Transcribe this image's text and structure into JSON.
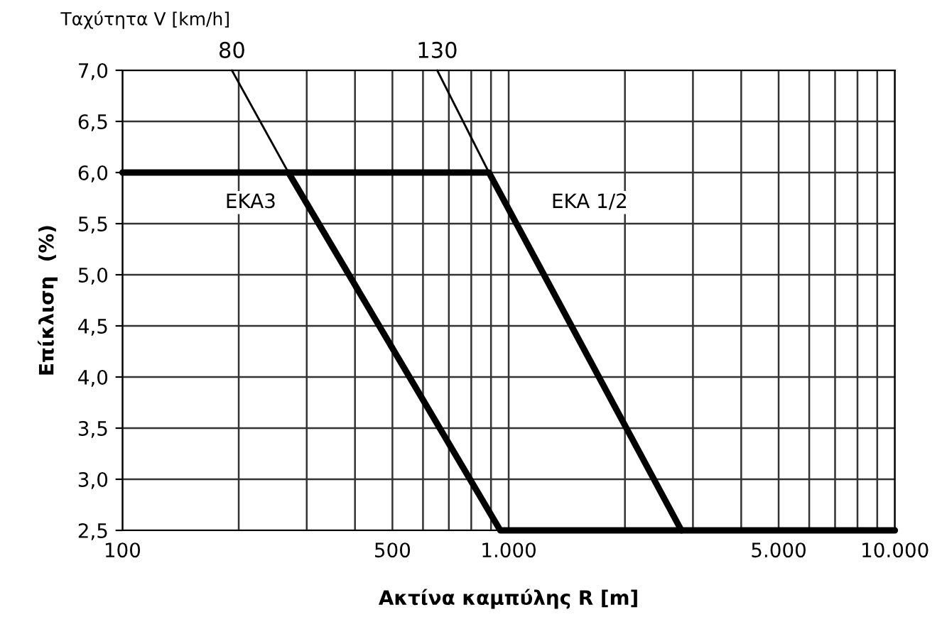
{
  "chart_data": {
    "type": "line",
    "xlabel": "Ακτίνα καμπύλης R [m]",
    "ylabel": "Επίκλιση  (%)",
    "annotations": [
      "Ταχύτητα V [km/h]",
      {
        "text": "80",
        "x": 192,
        "y": 7.0
      },
      {
        "text": "130",
        "x": 653,
        "y": 7.0
      }
    ],
    "log": "x",
    "grid": true,
    "xlim": [
      100,
      10000
    ],
    "ylim": [
      2.5,
      7.0
    ],
    "xticks": [
      100,
      {
        "value": 200,
        "label": null
      },
      {
        "value": 300,
        "label": null
      },
      {
        "value": 400,
        "label": null
      },
      500,
      {
        "value": 600,
        "label": null
      },
      {
        "value": 700,
        "label": null
      },
      {
        "value": 800,
        "label": null
      },
      {
        "value": 900,
        "label": null
      },
      {
        "value": 1000,
        "label": "1.000"
      },
      {
        "value": 2000,
        "label": null
      },
      {
        "value": 3000,
        "label": null
      },
      {
        "value": 4000,
        "label": null
      },
      {
        "value": 5000,
        "label": "5.000"
      },
      {
        "value": 6000,
        "label": null
      },
      {
        "value": 7000,
        "label": null
      },
      {
        "value": 8000,
        "label": null
      },
      {
        "value": 9000,
        "label": null
      },
      {
        "value": 10000,
        "label": "10.000"
      }
    ],
    "yticks": [
      {
        "value": 2.5,
        "label": "2,5"
      },
      {
        "value": 3.0,
        "label": "3,0"
      },
      {
        "value": 3.5,
        "label": "3,5"
      },
      {
        "value": 4.0,
        "label": "4,0"
      },
      {
        "value": 4.5,
        "label": "4,5"
      },
      {
        "value": 5.0,
        "label": "5,0"
      },
      {
        "value": 5.5,
        "label": "5,5"
      },
      {
        "value": 6.0,
        "label": "6,0"
      },
      {
        "value": 6.5,
        "label": "6,5"
      },
      {
        "value": 7.0,
        "label": "7,0"
      }
    ],
    "series": [
      {
        "name": "EKA3",
        "color": "#000000",
        "x": [
          100,
          269,
          951,
          10000
        ],
        "values": [
          6.0,
          6.0,
          2.5,
          2.5
        ]
      },
      {
        "name": "EKA 1/2",
        "color": "#000000",
        "x": [
          269,
          889,
          2800
        ],
        "values": [
          6.0,
          6.0,
          2.5
        ]
      },
      {
        "color": "#000000",
        "x": [
          192,
          269
        ],
        "values": [
          7.0,
          6.0
        ]
      },
      {
        "color": "#000000",
        "x": [
          653,
          889
        ],
        "values": [
          7.0,
          6.0
        ]
      }
    ]
  }
}
